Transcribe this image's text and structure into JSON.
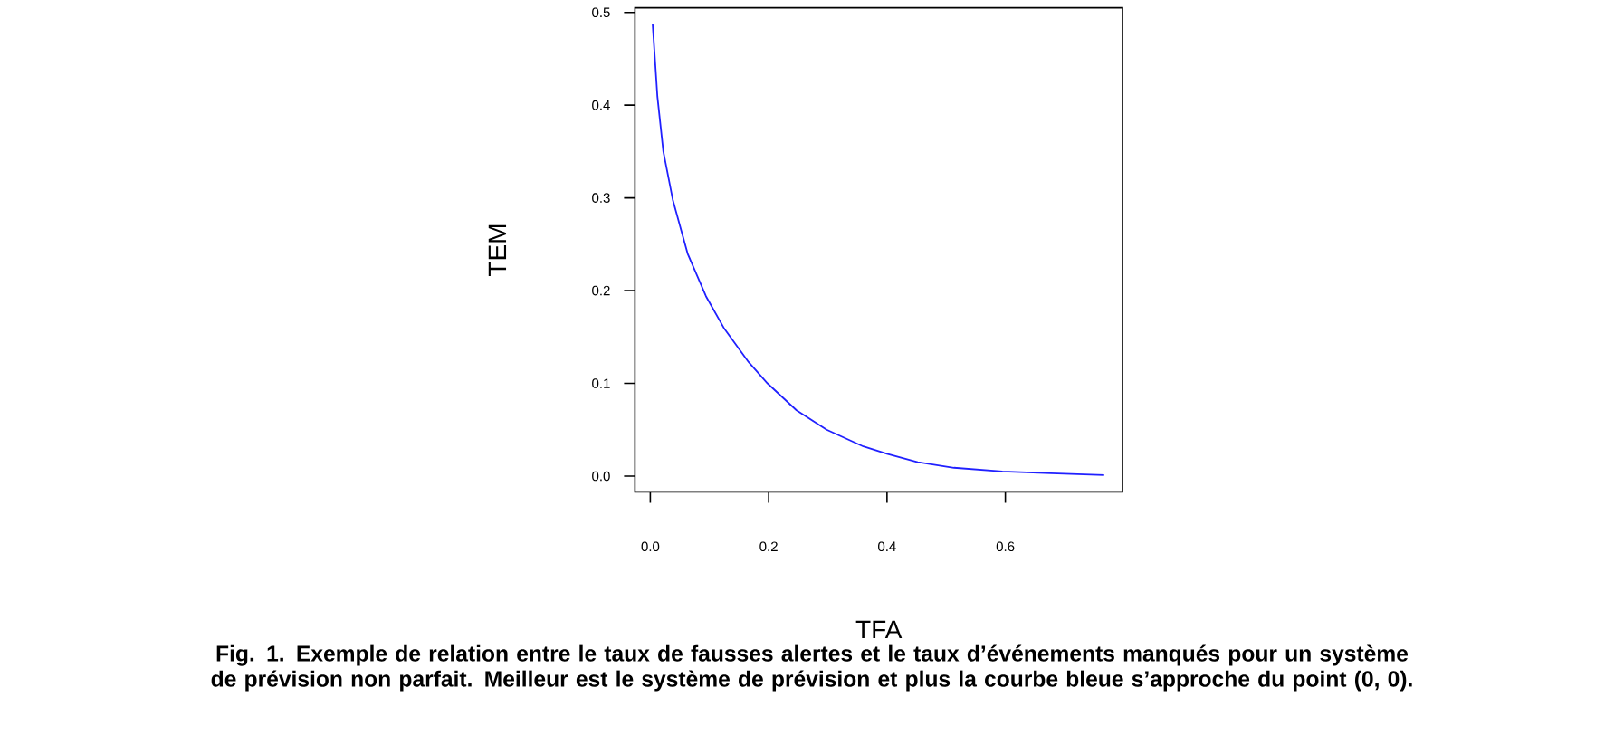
{
  "chart_data": {
    "type": "line",
    "xlabel": "TFA",
    "ylabel": "TEM",
    "x": [
      0.004,
      0.012,
      0.022,
      0.038,
      0.063,
      0.094,
      0.125,
      0.166,
      0.198,
      0.247,
      0.298,
      0.36,
      0.4,
      0.452,
      0.513,
      0.595,
      0.677,
      0.767
    ],
    "series": [
      {
        "color": "#2020ff",
        "values": [
          0.487,
          0.409,
          0.35,
          0.298,
          0.24,
          0.194,
          0.159,
          0.123,
          0.1,
          0.071,
          0.05,
          0.032,
          0.024,
          0.015,
          0.009,
          0.005,
          0.003,
          0.001
        ]
      }
    ],
    "xlim": [
      -0.026,
      0.798
    ],
    "ylim": [
      -0.017,
      0.505
    ],
    "xticks": [
      {
        "value": 0,
        "label": "0.0"
      },
      0.2,
      0.4,
      0.6
    ],
    "yticks": [
      {
        "value": 0,
        "label": "0.0"
      },
      0.1,
      0.2,
      0.3,
      0.4,
      0.5
    ],
    "annotations": [
      "Fig. 1. Exemple de relation entre le taux de fausses alertes et le taux d’événements manqués pour un système de prévision non parfait. Meilleur est le système de prévision et plus la courbe bleue s’approche du point (0, 0)."
    ]
  }
}
